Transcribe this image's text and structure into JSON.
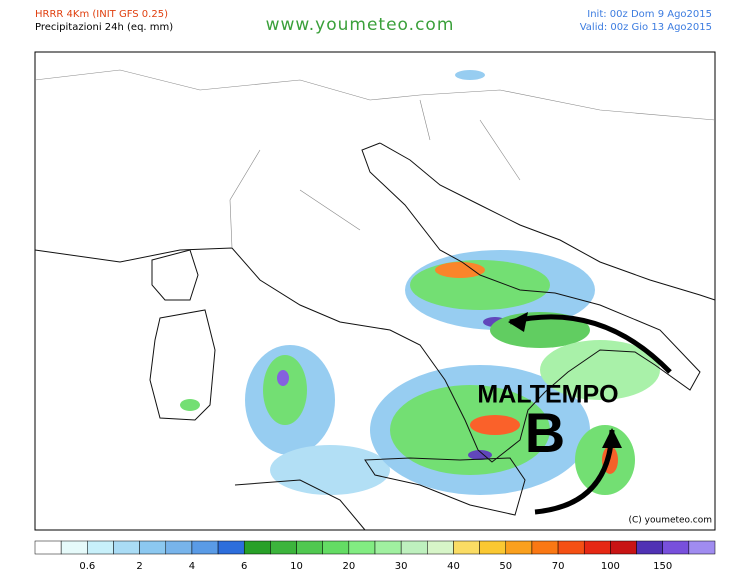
{
  "header": {
    "model": "HRRR 4Km (INIT GFS 0.25)",
    "field": "Precipitazioni 24h (eq. mm)",
    "site": "www.youmeteo.com",
    "init": "Init: 00z Dom 9  Ago2015",
    "valid": "Valid: 00z Gio  13 Ago2015"
  },
  "annotations": {
    "label": "MALTEMPO",
    "low": "B",
    "copyright": "(C) youmeteo.com"
  },
  "colorbar": {
    "colors": [
      "#ffffff",
      "#e6fafa",
      "#c8f0fa",
      "#aadcf5",
      "#8cc8f0",
      "#78b4eb",
      "#5a9be6",
      "#2d6edc",
      "#28a028",
      "#3cb43c",
      "#50c850",
      "#64dc64",
      "#82ec82",
      "#a0f0a0",
      "#bef0be",
      "#d7f5c8",
      "#fadc64",
      "#fac832",
      "#faa01e",
      "#fa7814",
      "#f55014",
      "#e62814",
      "#c81414",
      "#5032b4",
      "#7850dc",
      "#a08cf0"
    ],
    "labels": [
      0.6,
      2,
      4,
      6,
      10,
      20,
      30,
      40,
      50,
      70,
      100,
      150
    ]
  }
}
